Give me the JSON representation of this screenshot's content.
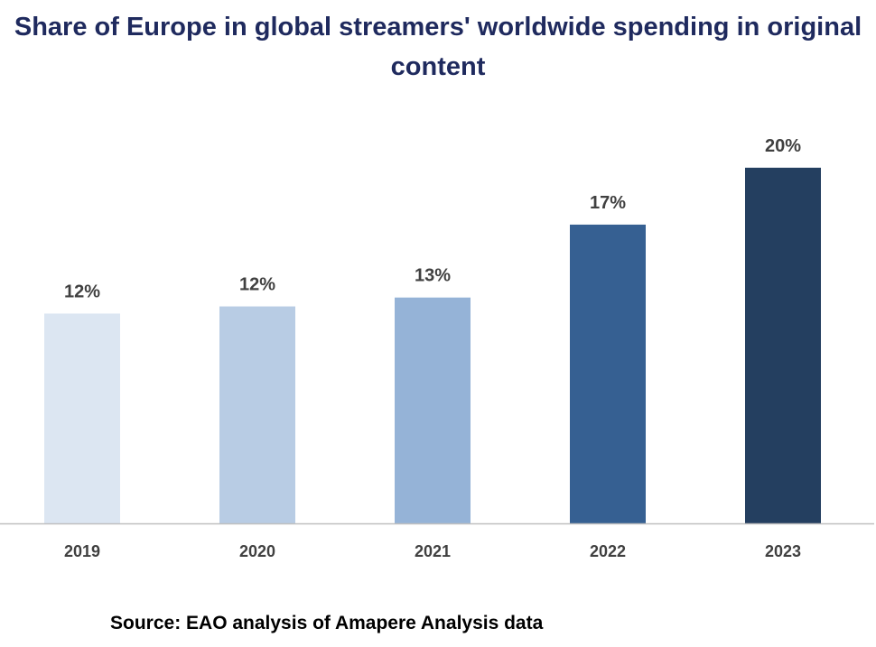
{
  "chart_data": {
    "type": "bar",
    "title": "Share of Europe in global streamers' worldwide spending in original content",
    "categories": [
      "2019",
      "2020",
      "2021",
      "2022",
      "2023"
    ],
    "values": [
      11.8,
      12.2,
      12.7,
      16.8,
      20.0
    ],
    "data_labels": [
      "12%",
      "12%",
      "13%",
      "17%",
      "20%"
    ],
    "bar_colors": [
      "#dce6f2",
      "#b8cce4",
      "#95b3d7",
      "#366092",
      "#243f60"
    ],
    "unit": "%",
    "ylim": [
      0,
      20.5
    ],
    "grid": false,
    "legend": "none",
    "source": "Source: EAO analysis of Amapere Analysis data"
  }
}
